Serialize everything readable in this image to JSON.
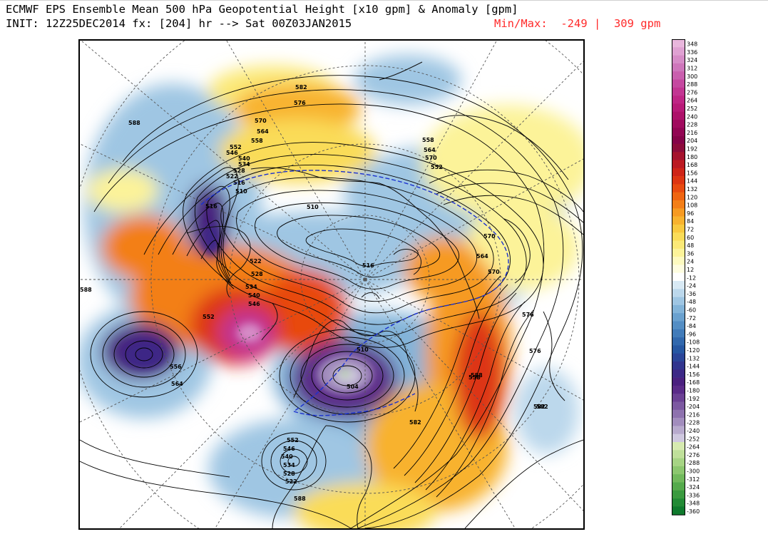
{
  "title": {
    "line1": "ECMWF EPS Ensemble Mean 500 hPa Geopotential Height [x10 gpm] & Anomaly [gpm]",
    "line2": "INIT: 12Z25DEC2014 fx: [204] hr --> Sat 00Z03JAN2015",
    "minmax": "Min/Max:  -249 |  309 gpm"
  },
  "colors": {
    "positive_peak": "#d8139e",
    "negative_peak": "#4b1a8c",
    "frame": "#000000",
    "minmax_text": "#ff2a2a"
  },
  "colorbar": {
    "labels": [
      "348",
      "336",
      "324",
      "312",
      "300",
      "288",
      "276",
      "264",
      "252",
      "240",
      "228",
      "216",
      "204",
      "192",
      "180",
      "168",
      "156",
      "144",
      "132",
      "120",
      "108",
      "96",
      "84",
      "72",
      "60",
      "48",
      "36",
      "24",
      "12",
      "-12",
      "-24",
      "-36",
      "-48",
      "-60",
      "-72",
      "-84",
      "-96",
      "-108",
      "-120",
      "-132",
      "-144",
      "-156",
      "-168",
      "-180",
      "-192",
      "-204",
      "-216",
      "-228",
      "-240",
      "-252",
      "-264",
      "-276",
      "-288",
      "-300",
      "-312",
      "-324",
      "-336",
      "-348",
      "-360"
    ],
    "colors": [
      "#e8b6dc",
      "#dfa1d2",
      "#d68cc7",
      "#ce76bb",
      "#c95fae",
      "#c548a0",
      "#c23592",
      "#bf2585",
      "#b81a78",
      "#ad116a",
      "#a00a5e",
      "#920553",
      "#850348",
      "#8c0b3a",
      "#a5122d",
      "#bb1a22",
      "#ce2418",
      "#dd3412",
      "#e84a10",
      "#ef6512",
      "#f37f18",
      "#f69a22",
      "#f8b22e",
      "#f9c93f",
      "#fadc58",
      "#fbe977",
      "#fcf399",
      "#fdfabf",
      "#fefde0",
      "#ffffff",
      "#d8e9f4",
      "#bcd8ec",
      "#9fc6e3",
      "#83b4d9",
      "#6aa1cf",
      "#548ec4",
      "#417bb9",
      "#3168ad",
      "#2657a2",
      "#2a4598",
      "#31358e",
      "#3c2886",
      "#4a207f",
      "#5a2b88",
      "#6b4194",
      "#7c59a1",
      "#8e72ae",
      "#a28dbd",
      "#b8aacd",
      "#cfc8df",
      "#d6eab0",
      "#bfe09a",
      "#a6d484",
      "#8cc76f",
      "#71b95c",
      "#55aa4c",
      "#3a9a3f",
      "#228a35",
      "#0f7a2d"
    ]
  },
  "contour_labels": [
    "582",
    "576",
    "570",
    "564",
    "558",
    "552",
    "546",
    "540",
    "534",
    "528",
    "522",
    "516",
    "510",
    "588",
    "558",
    "564",
    "570",
    "552",
    "516",
    "522",
    "528",
    "534",
    "540",
    "546",
    "552",
    "510",
    "588",
    "576",
    "570",
    "564",
    "582",
    "558",
    "556",
    "564",
    "552",
    "546",
    "540",
    "534",
    "528",
    "522",
    "516",
    "510",
    "504",
    "588",
    "570",
    "582",
    "576",
    "588",
    "582"
  ],
  "map_description_labels": {
    "projection": "north-polar-stereographic"
  }
}
